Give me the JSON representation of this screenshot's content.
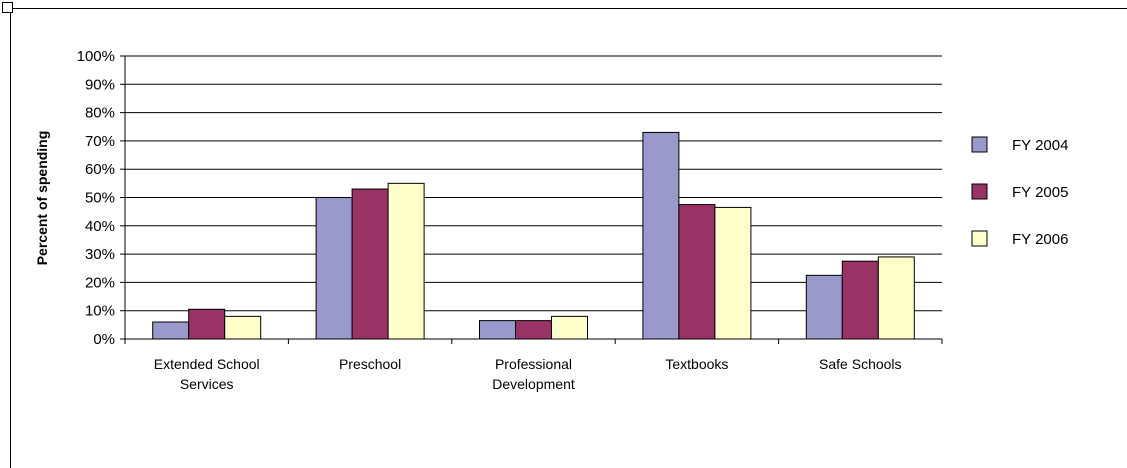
{
  "chart_data": {
    "type": "bar",
    "title": "",
    "xlabel": "",
    "ylabel": "Percent of spending",
    "ylim": [
      0,
      100
    ],
    "yticks": [
      "0%",
      "10%",
      "20%",
      "30%",
      "40%",
      "50%",
      "60%",
      "70%",
      "80%",
      "90%",
      "100%"
    ],
    "grid": true,
    "legend_position": "right",
    "categories": [
      [
        "Extended School",
        "Services"
      ],
      [
        "Preschool"
      ],
      [
        "Professional",
        "Development"
      ],
      [
        "Textbooks"
      ],
      [
        "Safe Schools"
      ]
    ],
    "series": [
      {
        "name": "FY 2004",
        "color": "#9999cc",
        "values": [
          6,
          50,
          6.5,
          73,
          22.5
        ]
      },
      {
        "name": "FY 2005",
        "color": "#993366",
        "values": [
          10.5,
          53,
          6.5,
          47.5,
          27.5
        ]
      },
      {
        "name": "FY 2006",
        "color": "#ffffcc",
        "values": [
          8,
          55,
          8,
          46.5,
          29
        ]
      }
    ]
  }
}
